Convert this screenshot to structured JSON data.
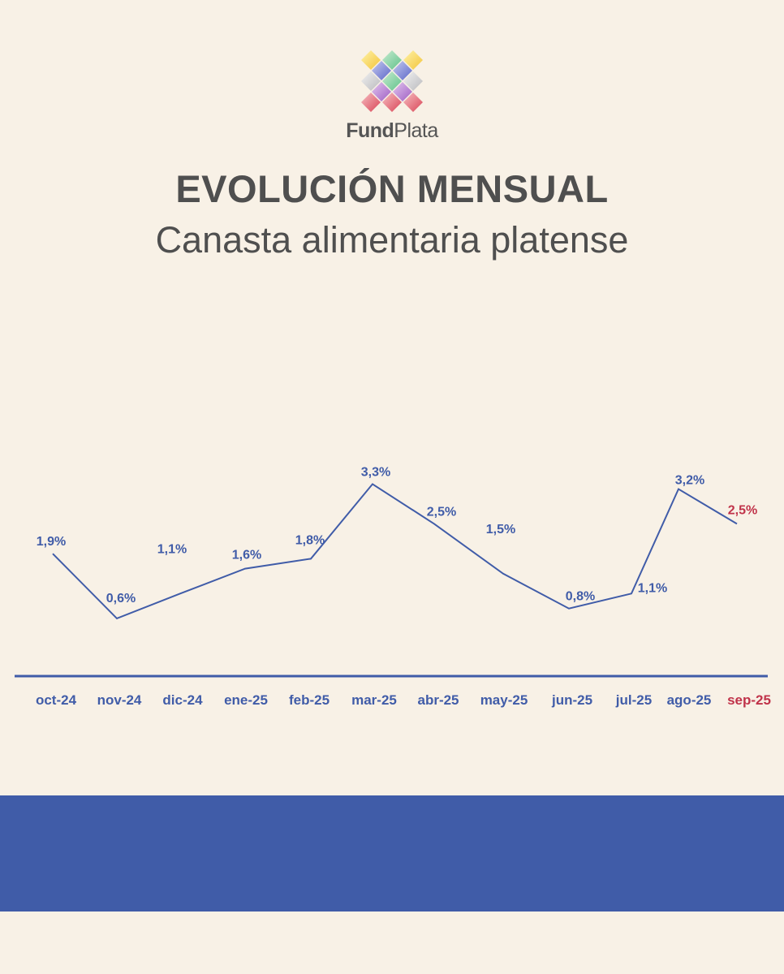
{
  "brand": {
    "bold": "Fund",
    "regular": "Plata"
  },
  "header": {
    "title": "EVOLUCIÓN MENSUAL",
    "subtitle": "Canasta alimentaria platense"
  },
  "colors": {
    "background": "#f8f1e6",
    "line": "#405ca8",
    "highlight": "#c0334a",
    "text": "#4f4f4f",
    "band": "#405ca8"
  },
  "chart_data": {
    "type": "line",
    "categories": [
      "oct-24",
      "nov-24",
      "dic-24",
      "ene-25",
      "feb-25",
      "mar-25",
      "abr-25",
      "may-25",
      "jun-25",
      "jul-25",
      "ago-25",
      "sep-25"
    ],
    "values": [
      1.9,
      0.6,
      1.1,
      1.6,
      1.8,
      3.3,
      2.5,
      1.5,
      0.8,
      1.1,
      3.2,
      2.5
    ],
    "labels": [
      "1,9%",
      "0,6%",
      "1,1%",
      "1,6%",
      "1,8%",
      "3,3%",
      "2,5%",
      "1,5%",
      "0,8%",
      "1,1%",
      "3,2%",
      "2,5%"
    ],
    "highlight_last": true,
    "title": "",
    "xlabel": "",
    "ylabel": "",
    "grid": false,
    "legend": "none"
  }
}
